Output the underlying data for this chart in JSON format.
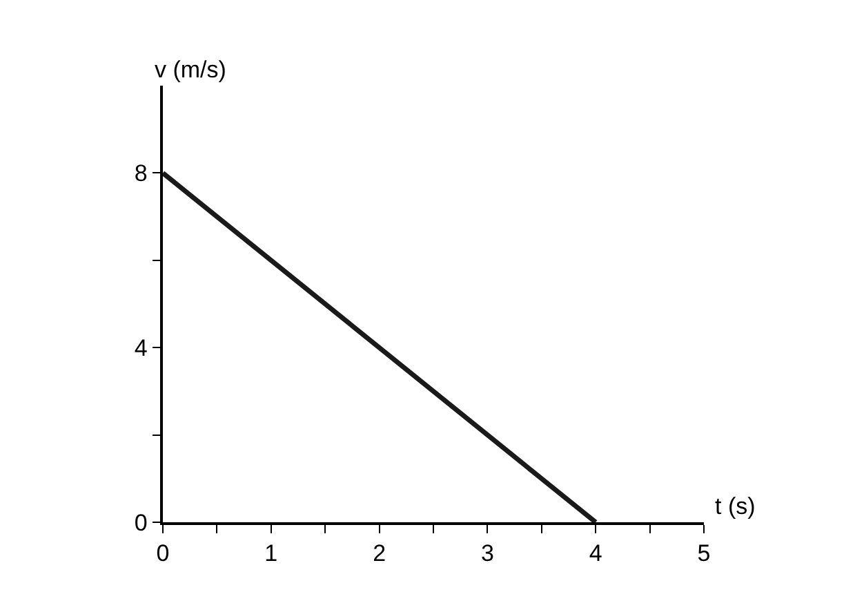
{
  "chart_data": {
    "type": "line",
    "xlabel": "t (s)",
    "ylabel": "v (m/s)",
    "x": [
      0,
      4
    ],
    "series": [
      {
        "color": "#1a1a1a",
        "values": [
          8,
          0
        ]
      }
    ],
    "xlim": [
      0,
      5
    ],
    "ylim": [
      0,
      10
    ],
    "xticks": [
      0,
      {
        "value": 0.5,
        "label": null
      },
      1,
      {
        "value": 1.5,
        "label": null
      },
      2,
      {
        "value": 2.5,
        "label": null
      },
      3,
      {
        "value": 3.5,
        "label": null
      },
      4,
      {
        "value": 4.5,
        "label": null
      },
      5
    ],
    "yticks": [
      0,
      {
        "value": 2,
        "label": null
      },
      4,
      {
        "value": 6,
        "label": null
      },
      8
    ],
    "marker": "none",
    "line_style": "solid"
  }
}
